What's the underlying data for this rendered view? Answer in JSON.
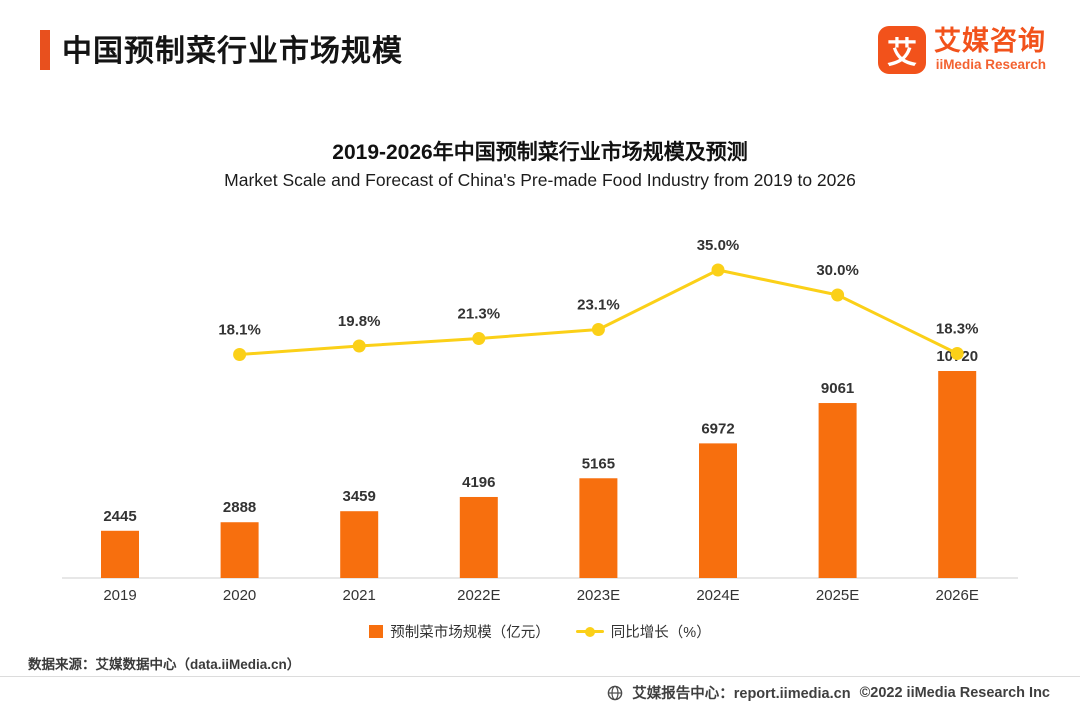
{
  "header": {
    "title": "中国预制菜行业市场规模",
    "logo": {
      "icon_char": "艾",
      "brand_cn": "艾媒咨询",
      "brand_en": "iiMedia Research"
    }
  },
  "chart": {
    "title_cn": "2019-2026年中国预制菜行业市场规模及预测",
    "title_en": "Market Scale and Forecast of China's Pre-made Food Industry from 2019 to 2026"
  },
  "chart_data": {
    "type": "bar+line",
    "categories": [
      "2019",
      "2020",
      "2021",
      "2022E",
      "2023E",
      "2024E",
      "2025E",
      "2026E"
    ],
    "series": [
      {
        "name": "预制菜市场规模（亿元）",
        "type": "bar",
        "color": "#f76f0e",
        "values": [
          2445,
          2888,
          3459,
          4196,
          5165,
          6972,
          9061,
          10720
        ]
      },
      {
        "name": "同比增长（%）",
        "type": "line",
        "color": "#fbd018",
        "values": [
          null,
          18.1,
          19.8,
          21.3,
          23.1,
          35.0,
          30.0,
          18.3
        ]
      }
    ],
    "ylabel": "",
    "xlabel": "",
    "grid": false,
    "legend_position": "bottom",
    "bar_value_labels": [
      "2445",
      "2888",
      "3459",
      "4196",
      "5165",
      "6972",
      "9061",
      "10720"
    ],
    "line_value_labels": [
      "18.1%",
      "19.8%",
      "21.3%",
      "23.1%",
      "35.0%",
      "30.0%",
      "18.3%"
    ]
  },
  "legend": {
    "bar_label": "预制菜市场规模（亿元）",
    "line_label": "同比增长（%）"
  },
  "colors": {
    "bar_orange": "#f76f0e",
    "accent_orange": "#e8501e",
    "logo_orange": "#f2521b",
    "line_gold": "#fbd018"
  },
  "source": "数据来源：艾媒数据中心（data.iiMedia.cn）",
  "footer": {
    "site_label": "艾媒报告中心：report.iimedia.cn",
    "copyright": "©2022  iiMedia Research Inc"
  }
}
